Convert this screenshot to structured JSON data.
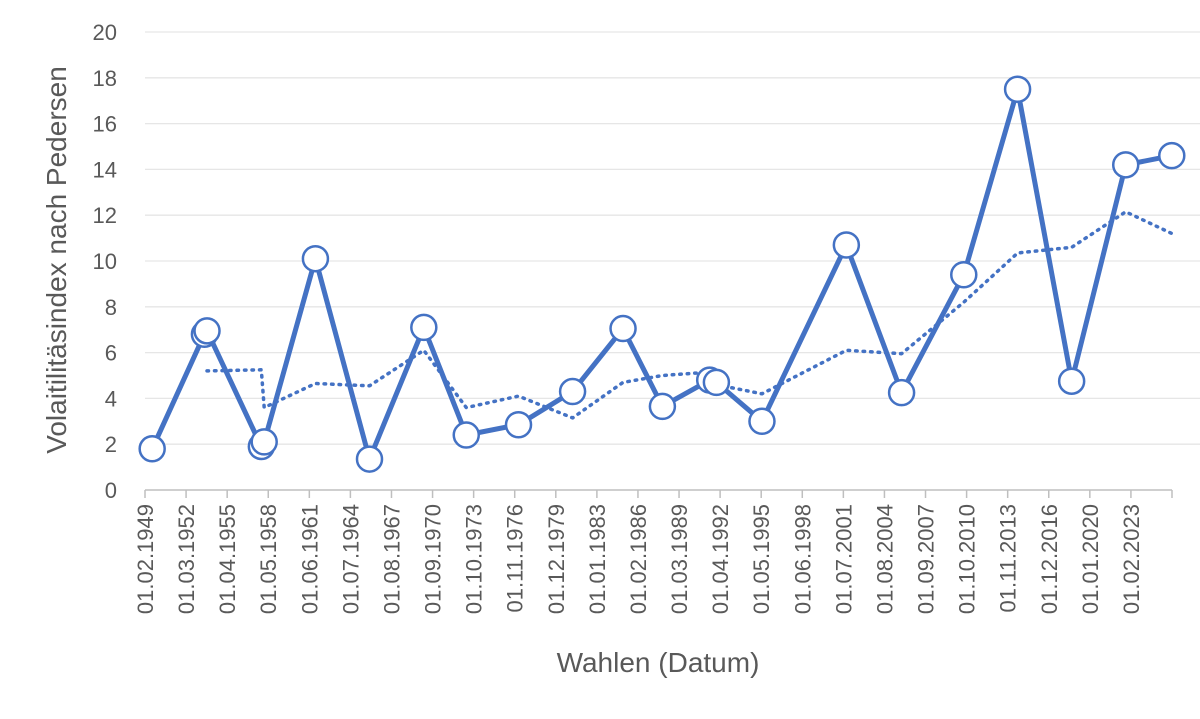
{
  "chart_data": {
    "type": "line",
    "xlabel": "Wahlen (Datum)",
    "ylabel": "Volaitilitäsindex nach Pedersen",
    "ylim": [
      0,
      20
    ],
    "yticks": [
      0,
      2,
      4,
      6,
      8,
      10,
      12,
      14,
      16,
      18,
      20
    ],
    "x_tick_labels": [
      "01.02.1949",
      "01.03.1952",
      "01.04.1955",
      "01.05.1958",
      "01.06.1961",
      "01.07.1964",
      "01.08.1967",
      "01.09.1970",
      "01.10.1973",
      "01.11.1976",
      "01.12.1979",
      "01.01.1983",
      "01.02.1986",
      "01.03.1989",
      "01.04.1992",
      "01.05.1995",
      "01.06.1998",
      "01.07.2001",
      "01.08.2004",
      "01.09.2007",
      "01.10.2010",
      "01.11.2013",
      "01.12.2016",
      "01.01.2020",
      "01.02.2023"
    ],
    "grid": true,
    "legend": "none",
    "colors": {
      "series": "#4472c4",
      "axis": "#bfbfbf",
      "grid": "#e6e6e6",
      "text": "#595959"
    },
    "series": [
      {
        "style": "solid-with-markers",
        "points": [
          {
            "x": "1949-08-14",
            "y": 1.8
          },
          {
            "x": "1953-06-28",
            "y": 6.8
          },
          {
            "x": "1953-09-06",
            "y": 6.95
          },
          {
            "x": "1957-09-15",
            "y": 1.9
          },
          {
            "x": "1957-12-01",
            "y": 2.1
          },
          {
            "x": "1961-09-17",
            "y": 10.1
          },
          {
            "x": "1965-09-19",
            "y": 1.35
          },
          {
            "x": "1969-09-28",
            "y": 7.1
          },
          {
            "x": "1972-11-19",
            "y": 2.4
          },
          {
            "x": "1976-10-03",
            "y": 2.85
          },
          {
            "x": "1980-10-05",
            "y": 4.3
          },
          {
            "x": "1984-07-01",
            "y": 7.05
          },
          {
            "x": "1987-06-01",
            "y": 3.65
          },
          {
            "x": "1990-12-02",
            "y": 4.8
          },
          {
            "x": "1991-06-01",
            "y": 4.7
          },
          {
            "x": "1994-10-16",
            "y": 3.0
          },
          {
            "x": "2001-01-15",
            "y": 10.7
          },
          {
            "x": "2005-02-18",
            "y": 4.25
          },
          {
            "x": "2009-09-27",
            "y": 9.4
          },
          {
            "x": "2013-09-22",
            "y": 17.5
          },
          {
            "x": "2017-09-24",
            "y": 4.75
          },
          {
            "x": "2021-09-26",
            "y": 14.2
          },
          {
            "x": "2025-02-23",
            "y": 14.6
          }
        ]
      },
      {
        "style": "dotted-trend",
        "points": [
          {
            "x": "1953-09-06",
            "y": 5.2
          },
          {
            "x": "1957-09-15",
            "y": 5.25
          },
          {
            "x": "1957-12-01",
            "y": 3.6
          },
          {
            "x": "1961-09-17",
            "y": 4.65
          },
          {
            "x": "1965-09-19",
            "y": 4.55
          },
          {
            "x": "1969-09-28",
            "y": 6.1
          },
          {
            "x": "1972-11-19",
            "y": 3.6
          },
          {
            "x": "1976-10-03",
            "y": 4.1
          },
          {
            "x": "1980-10-05",
            "y": 3.15
          },
          {
            "x": "1984-07-01",
            "y": 4.7
          },
          {
            "x": "1987-06-01",
            "y": 5.0
          },
          {
            "x": "1990-12-02",
            "y": 5.15
          },
          {
            "x": "1991-06-01",
            "y": 4.6
          },
          {
            "x": "1994-10-16",
            "y": 4.2
          },
          {
            "x": "2001-01-15",
            "y": 6.1
          },
          {
            "x": "2005-02-18",
            "y": 5.95
          },
          {
            "x": "2009-09-27",
            "y": 8.2
          },
          {
            "x": "2013-09-22",
            "y": 10.35
          },
          {
            "x": "2017-09-24",
            "y": 10.6
          },
          {
            "x": "2021-09-26",
            "y": 12.15
          },
          {
            "x": "2025-02-23",
            "y": 11.2
          }
        ]
      }
    ]
  }
}
